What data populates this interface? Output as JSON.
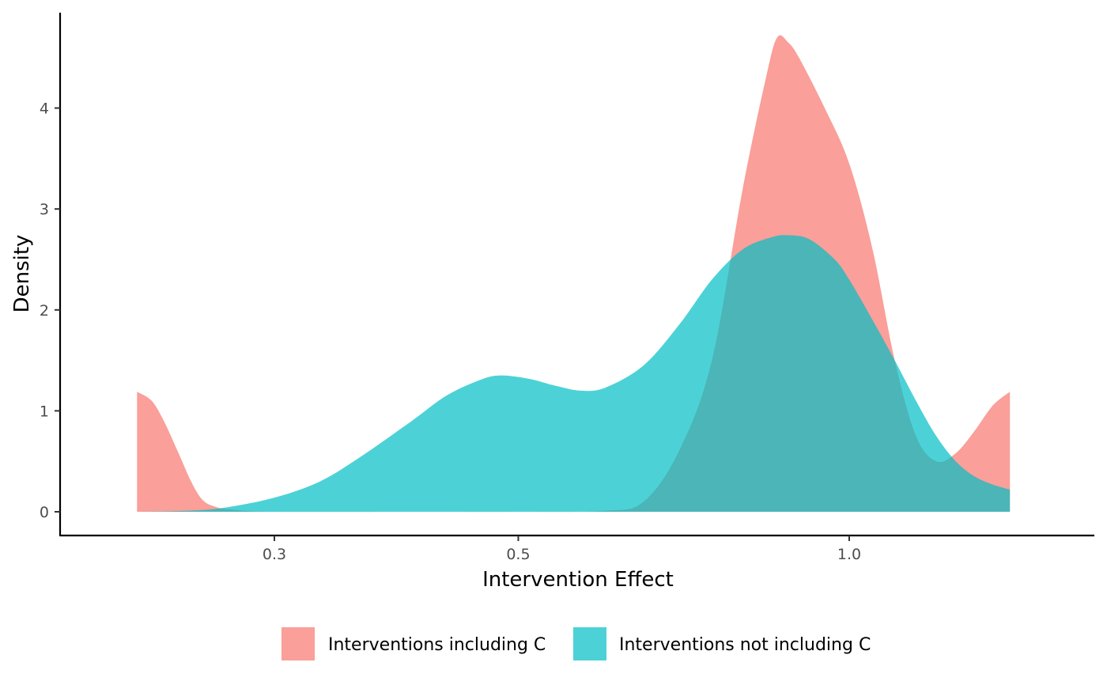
{
  "chart_data": {
    "type": "area",
    "title": "",
    "xlabel": "Intervention Effect",
    "ylabel": "Density",
    "x_scale": "log",
    "xlim": [
      0.225,
      1.4
    ],
    "ylim": [
      0,
      4.7
    ],
    "x_ticks": [
      {
        "value": 0.3,
        "label": "0.3"
      },
      {
        "value": 0.5,
        "label": "0.5"
      },
      {
        "value": 1.0,
        "label": "1.0"
      }
    ],
    "y_ticks": [
      {
        "value": 0,
        "label": "0"
      },
      {
        "value": 1,
        "label": "1"
      },
      {
        "value": 2,
        "label": "2"
      },
      {
        "value": 3,
        "label": "3"
      },
      {
        "value": 4,
        "label": "4"
      }
    ],
    "grid": false,
    "legend_position": "bottom",
    "series": [
      {
        "name": "Interventions including C",
        "color": "#F8766D",
        "opacity": 0.7,
        "points": [
          [
            0.225,
            1.19
          ],
          [
            0.232,
            1.1
          ],
          [
            0.238,
            0.9
          ],
          [
            0.245,
            0.6
          ],
          [
            0.252,
            0.3
          ],
          [
            0.258,
            0.12
          ],
          [
            0.265,
            0.05
          ],
          [
            0.275,
            0.02
          ],
          [
            0.3,
            0.0
          ],
          [
            0.4,
            0.0
          ],
          [
            0.5,
            0.0
          ],
          [
            0.6,
            0.01
          ],
          [
            0.65,
            0.1
          ],
          [
            0.7,
            0.6
          ],
          [
            0.75,
            1.5
          ],
          [
            0.8,
            3.2
          ],
          [
            0.84,
            4.3
          ],
          [
            0.86,
            4.7
          ],
          [
            0.88,
            4.65
          ],
          [
            0.9,
            4.5
          ],
          [
            0.95,
            4.0
          ],
          [
            1.0,
            3.45
          ],
          [
            1.05,
            2.6
          ],
          [
            1.1,
            1.5
          ],
          [
            1.15,
            0.75
          ],
          [
            1.2,
            0.5
          ],
          [
            1.25,
            0.58
          ],
          [
            1.3,
            0.8
          ],
          [
            1.35,
            1.05
          ],
          [
            1.4,
            1.19
          ]
        ]
      },
      {
        "name": "Interventions not including C",
        "color": "#00BFC4",
        "opacity": 0.7,
        "points": [
          [
            0.225,
            0.0
          ],
          [
            0.25,
            0.01
          ],
          [
            0.27,
            0.04
          ],
          [
            0.3,
            0.14
          ],
          [
            0.33,
            0.3
          ],
          [
            0.36,
            0.55
          ],
          [
            0.4,
            0.9
          ],
          [
            0.43,
            1.15
          ],
          [
            0.46,
            1.3
          ],
          [
            0.48,
            1.35
          ],
          [
            0.51,
            1.32
          ],
          [
            0.54,
            1.25
          ],
          [
            0.57,
            1.2
          ],
          [
            0.6,
            1.23
          ],
          [
            0.65,
            1.45
          ],
          [
            0.7,
            1.85
          ],
          [
            0.75,
            2.3
          ],
          [
            0.8,
            2.6
          ],
          [
            0.85,
            2.72
          ],
          [
            0.88,
            2.74
          ],
          [
            0.92,
            2.7
          ],
          [
            0.97,
            2.5
          ],
          [
            1.0,
            2.3
          ],
          [
            1.05,
            1.9
          ],
          [
            1.1,
            1.5
          ],
          [
            1.15,
            1.1
          ],
          [
            1.2,
            0.75
          ],
          [
            1.25,
            0.5
          ],
          [
            1.3,
            0.35
          ],
          [
            1.35,
            0.27
          ],
          [
            1.4,
            0.22
          ]
        ]
      }
    ]
  }
}
